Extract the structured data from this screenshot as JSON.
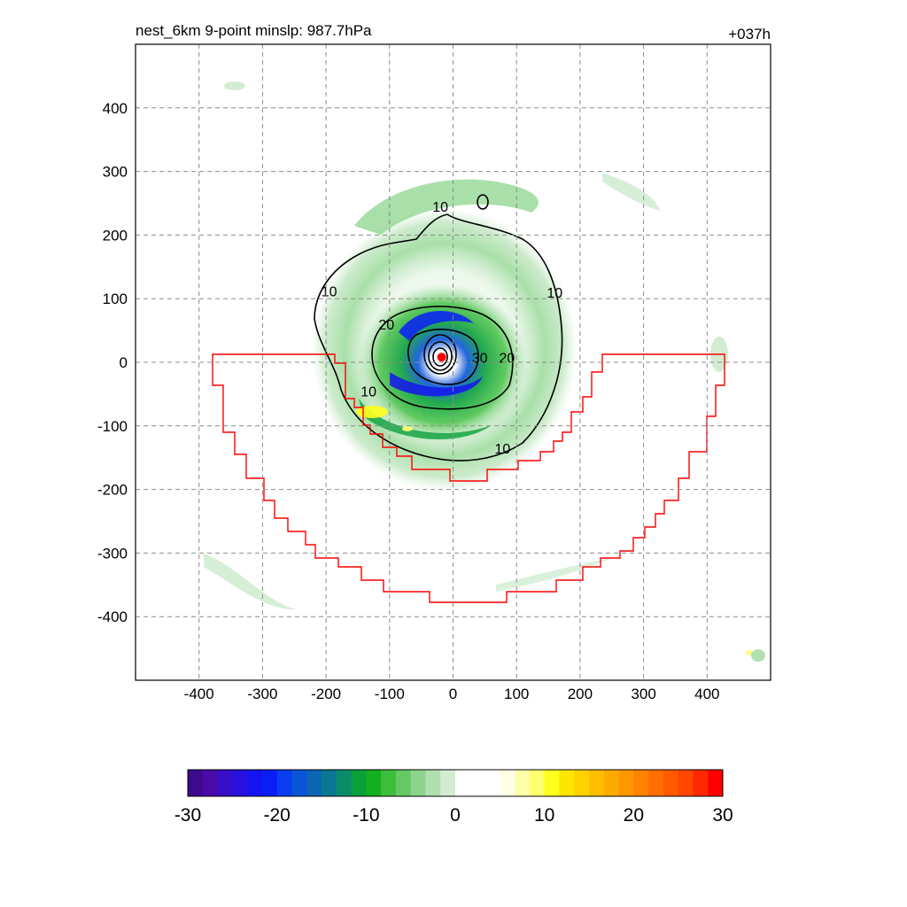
{
  "header": {
    "title": "nest_6km  9-point minslp: 987.7hPa",
    "forecast_hour": "+037h"
  },
  "chart_data": {
    "type": "heatmap",
    "title": "nest_6km  9-point minslp: 987.7hPa",
    "annotation_top_right": "+037h",
    "xlabel": "",
    "ylabel": "",
    "xlim": [
      -500,
      500
    ],
    "ylim": [
      -500,
      500
    ],
    "x_ticks": [
      -400,
      -300,
      -200,
      -100,
      0,
      100,
      200,
      300,
      400
    ],
    "y_ticks": [
      400,
      300,
      200,
      100,
      0,
      -100,
      -200,
      -300,
      -400
    ],
    "grid": true,
    "grid_style": "dashed",
    "storm_center": {
      "x": -18,
      "y": 8,
      "color": "#ff0000"
    },
    "contour_labels": [
      {
        "text": "10",
        "x": 160,
        "y": 110
      },
      {
        "text": "10",
        "x": -20,
        "y": 245
      },
      {
        "text": "10",
        "x": -195,
        "y": 112
      },
      {
        "text": "10",
        "x": -133,
        "y": -45
      },
      {
        "text": "10",
        "x": 78,
        "y": -135
      },
      {
        "text": "20",
        "x": -105,
        "y": 60
      },
      {
        "text": "20",
        "x": 85,
        "y": 8
      },
      {
        "text": "30",
        "x": 42,
        "y": 8
      }
    ],
    "colorbar": {
      "min": -30,
      "max": 30,
      "tick_labels": [
        "-30",
        "-20",
        "-10",
        "0",
        "10",
        "20",
        "30"
      ],
      "tick_values": [
        -30,
        -20,
        -10,
        0,
        10,
        20,
        30
      ],
      "colors": [
        "#3d0a8e",
        "#4a0aa8",
        "#380ec6",
        "#2810de",
        "#1414f0",
        "#0a1ef8",
        "#0a3cf0",
        "#0a54d8",
        "#0a66b4",
        "#0a7890",
        "#0a8c6a",
        "#0aa03c",
        "#12b01e",
        "#3cbe3c",
        "#64c864",
        "#8cd48c",
        "#b0e0b0",
        "#d2ecd2",
        "#ffffff",
        "#ffffff",
        "#ffffff",
        "#ffffe6",
        "#ffffaa",
        "#ffff6e",
        "#ffff1e",
        "#ffe600",
        "#ffd200",
        "#ffbe00",
        "#ffaa00",
        "#ff9600",
        "#ff8200",
        "#ff6e00",
        "#ff5a00",
        "#ff4600",
        "#ff2800",
        "#ff0000"
      ],
      "orientation": "horizontal"
    }
  }
}
